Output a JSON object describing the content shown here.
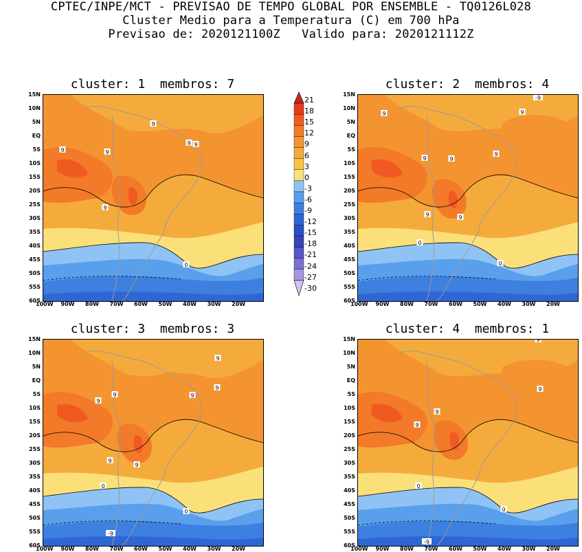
{
  "header": {
    "line1": "CPTEC/INPE/MCT - PREVISAO DE TEMPO GLOBAL POR ENSEMBLE - TQ0126L028",
    "line2": "Cluster Medio para a Temperatura (C) em 700 hPa",
    "line3": "Previsao de: 2020121100Z   Valido para: 2020121112Z"
  },
  "panels": [
    {
      "title": "cluster: 1  membros: 7"
    },
    {
      "title": "cluster: 2  membros: 4"
    },
    {
      "title": "cluster: 3  membros: 3"
    },
    {
      "title": "cluster: 4  membros: 1"
    }
  ],
  "lat_ticks": [
    "15N",
    "10N",
    "5N",
    "EQ",
    "5S",
    "10S",
    "15S",
    "20S",
    "25S",
    "30S",
    "35S",
    "40S",
    "45S",
    "50S",
    "55S",
    "60S"
  ],
  "lon_ticks": [
    "100W",
    "90W",
    "80W",
    "70W",
    "60W",
    "50W",
    "40W",
    "30W",
    "20W"
  ],
  "colorbar": {
    "labels": [
      "21",
      "18",
      "15",
      "12",
      "9",
      "6",
      "3",
      "0",
      "-3",
      "-6",
      "-9",
      "-12",
      "-15",
      "-18",
      "-21",
      "-24",
      "-27",
      "-30"
    ],
    "colors": [
      "#c4281c",
      "#e63a1e",
      "#f05a22",
      "#f27a28",
      "#f49431",
      "#f5ab3c",
      "#f8c347",
      "#fbe07a",
      "#8fc3f5",
      "#5a9fec",
      "#3d80e0",
      "#2f66d4",
      "#2a4fc6",
      "#3a45b8",
      "#5a55c8",
      "#7a70d6",
      "#a796e0",
      "#d2c5ee"
    ]
  },
  "contour_labels": {
    "p1": [
      "9",
      "9",
      "9",
      "9",
      "9",
      "9",
      "0"
    ],
    "p2": [
      "9",
      "9",
      "9",
      "9",
      "9",
      "9",
      "9",
      "0",
      "0",
      "-9"
    ],
    "p3": [
      "9",
      "9",
      "9",
      "9",
      "9",
      "9",
      "9",
      "0",
      "0",
      "-9"
    ],
    "p4": [
      "9",
      "9",
      "9",
      "9",
      "0",
      "0",
      "-9"
    ]
  }
}
